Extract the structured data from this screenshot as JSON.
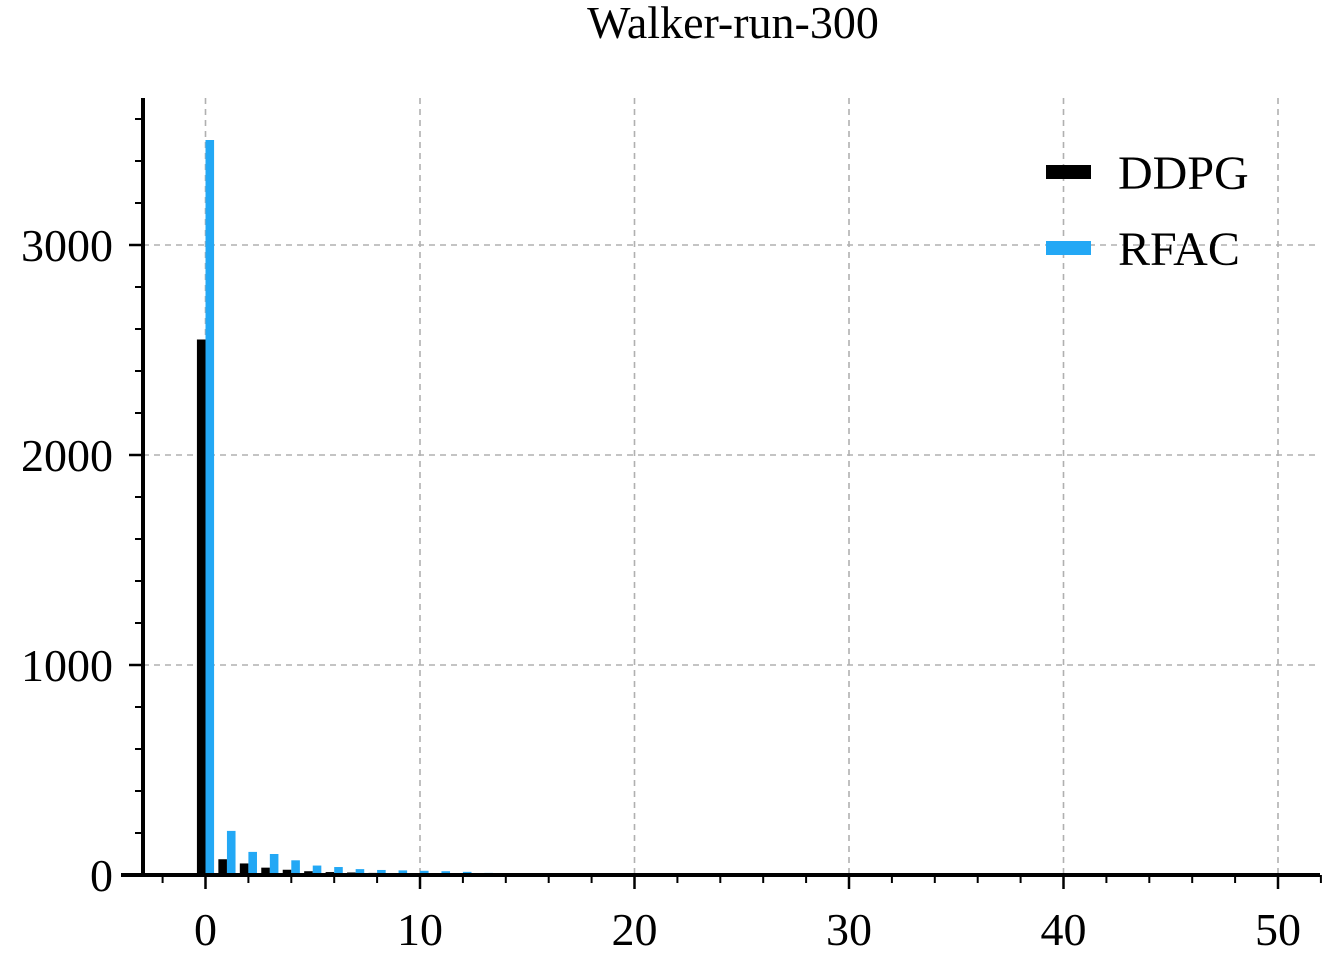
{
  "chart_data": {
    "type": "bar",
    "title": "Walker-run-300",
    "xlabel": "",
    "ylabel": "",
    "xlim": [
      -3,
      52
    ],
    "ylim": [
      0,
      3700
    ],
    "x_ticks": [
      0,
      10,
      20,
      30,
      40,
      50
    ],
    "y_ticks": [
      0,
      1000,
      2000,
      3000
    ],
    "grid": true,
    "legend_position": "top-right",
    "x": [
      0,
      1,
      2,
      3,
      4,
      5,
      6,
      7,
      8,
      9,
      10,
      11,
      12,
      13,
      14,
      15,
      16,
      17,
      18,
      19,
      20,
      21,
      22,
      23,
      24,
      25,
      26,
      27,
      28,
      29,
      30,
      31,
      32,
      33,
      34,
      35,
      36,
      37,
      38,
      39,
      40,
      41,
      42,
      43,
      44,
      45,
      46,
      47,
      48,
      49,
      50
    ],
    "series": [
      {
        "name": "DDPG",
        "color": "#000000",
        "values": [
          2550,
          75,
          55,
          35,
          25,
          18,
          14,
          12,
          10,
          9,
          8,
          7,
          6,
          5,
          5,
          4,
          4,
          3,
          3,
          3,
          3,
          3,
          2,
          2,
          2,
          2,
          2,
          2,
          2,
          2,
          2,
          2,
          2,
          2,
          2,
          2,
          2,
          2,
          2,
          2,
          2,
          2,
          2,
          2,
          2,
          2,
          2,
          2,
          2,
          2,
          2
        ]
      },
      {
        "name": "RFAC",
        "color": "#23a8f5",
        "values": [
          3500,
          210,
          110,
          100,
          70,
          45,
          38,
          28,
          24,
          22,
          20,
          18,
          15,
          10,
          6,
          4,
          3,
          2,
          2,
          2,
          1,
          1,
          1,
          1,
          1,
          1,
          1,
          1,
          1,
          1,
          1,
          1,
          1,
          1,
          1,
          1,
          1,
          1,
          1,
          1,
          1,
          1,
          1,
          1,
          1,
          1,
          1,
          1,
          1,
          1,
          1
        ]
      }
    ]
  }
}
